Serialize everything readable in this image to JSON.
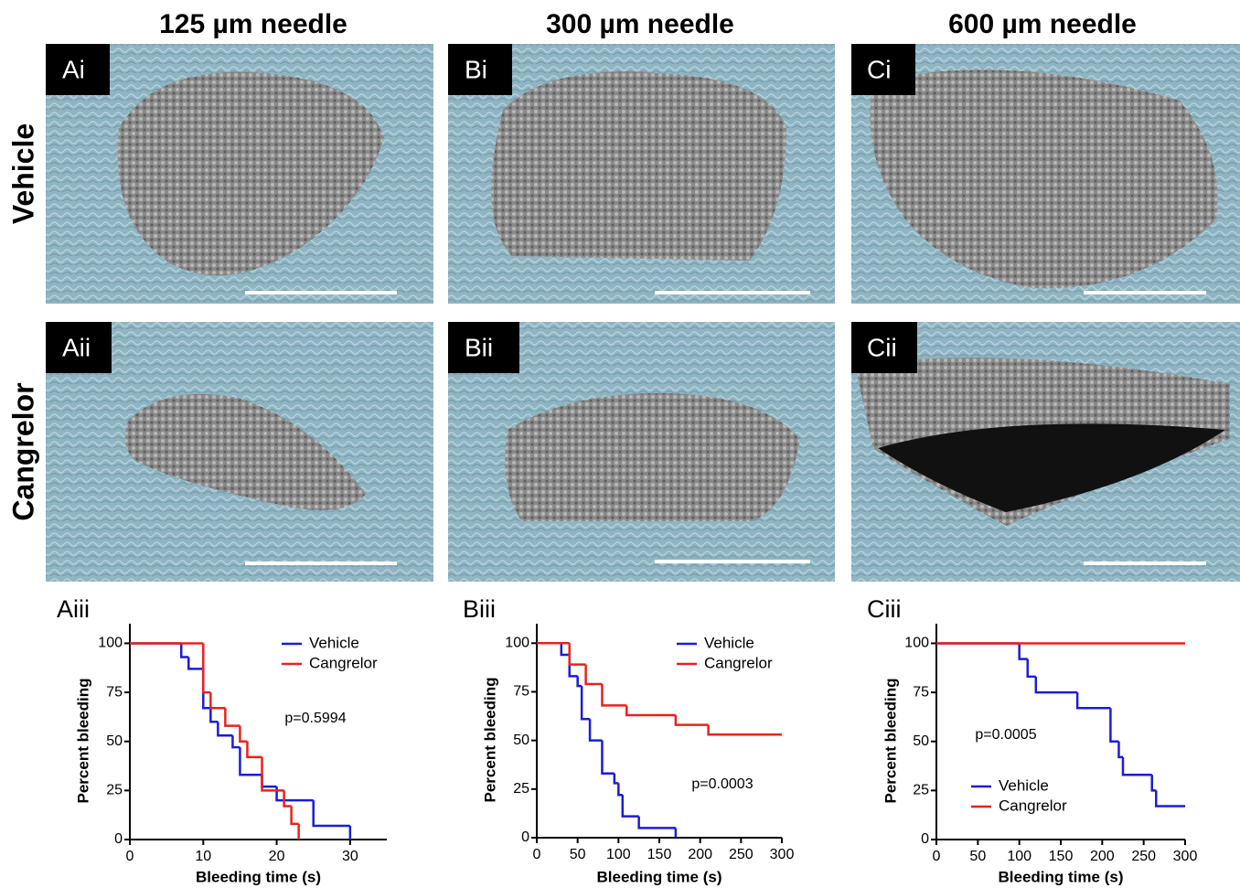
{
  "column_headers": [
    "125 µm needle",
    "300 µm needle",
    "600 µm needle"
  ],
  "row_labels": [
    "Vehicle",
    "Cangrelor"
  ],
  "panels": [
    [
      "Ai",
      "Bi",
      "Ci"
    ],
    [
      "Aii",
      "Bii",
      "Cii"
    ]
  ],
  "chart_data": [
    {
      "type": "step",
      "panel": "Aiii",
      "xlabel": "Bleeding time (s)",
      "ylabel": "Percent bleeding",
      "annotation": "p=0.5994",
      "legend": "upper right",
      "xlim": [
        0,
        35
      ],
      "xticks": [
        0,
        10,
        20,
        30
      ],
      "ylim": [
        0,
        110
      ],
      "yticks": [
        0,
        25,
        50,
        75,
        100
      ],
      "series": [
        {
          "name": "Vehicle",
          "color": "#1c1cd6",
          "x": [
            0,
            7,
            8,
            10,
            11,
            12,
            14,
            15,
            18,
            20,
            25,
            30
          ],
          "values": [
            100,
            93,
            87,
            67,
            60,
            53,
            47,
            33,
            27,
            20,
            7,
            0
          ]
        },
        {
          "name": "Cangrelor",
          "color": "#e5231f",
          "x": [
            0,
            10,
            11,
            13,
            15,
            16,
            18,
            21,
            22,
            23
          ],
          "values": [
            100,
            75,
            67,
            58,
            50,
            42,
            25,
            17,
            8,
            0
          ]
        }
      ]
    },
    {
      "type": "step",
      "panel": "Biii",
      "xlabel": "Bleeding time (s)",
      "ylabel": "Percent bleeding",
      "annotation": "p=0.0003",
      "legend": "upper right",
      "xlim": [
        0,
        300
      ],
      "xticks": [
        0,
        50,
        100,
        150,
        200,
        250,
        300
      ],
      "ylim": [
        0,
        110
      ],
      "yticks": [
        0,
        25,
        50,
        75,
        100
      ],
      "series": [
        {
          "name": "Vehicle",
          "color": "#1c1cd6",
          "x": [
            0,
            30,
            40,
            50,
            55,
            65,
            80,
            95,
            100,
            105,
            125,
            170
          ],
          "values": [
            100,
            94,
            83,
            78,
            61,
            50,
            33,
            28,
            22,
            11,
            5,
            0
          ]
        },
        {
          "name": "Cangrelor",
          "color": "#e5231f",
          "x": [
            0,
            40,
            60,
            80,
            110,
            170,
            210,
            300
          ],
          "values": [
            100,
            89,
            79,
            68,
            63,
            58,
            53,
            53
          ]
        }
      ]
    },
    {
      "type": "step",
      "panel": "Ciii",
      "xlabel": "Bleeding time (s)",
      "ylabel": "Percent bleeding",
      "annotation": "p=0.0005",
      "legend": "lower left",
      "xlim": [
        0,
        300
      ],
      "xticks": [
        0,
        50,
        100,
        150,
        200,
        250,
        300
      ],
      "ylim": [
        0,
        110
      ],
      "yticks": [
        0,
        25,
        50,
        75,
        100
      ],
      "series": [
        {
          "name": "Vehicle",
          "color": "#1c1cd6",
          "x": [
            0,
            100,
            110,
            120,
            170,
            210,
            220,
            225,
            260,
            265,
            300
          ],
          "values": [
            100,
            92,
            83,
            75,
            67,
            50,
            42,
            33,
            25,
            17,
            17
          ]
        },
        {
          "name": "Cangrelor",
          "color": "#e5231f",
          "x": [
            0,
            300
          ],
          "values": [
            100,
            100
          ]
        }
      ]
    }
  ]
}
